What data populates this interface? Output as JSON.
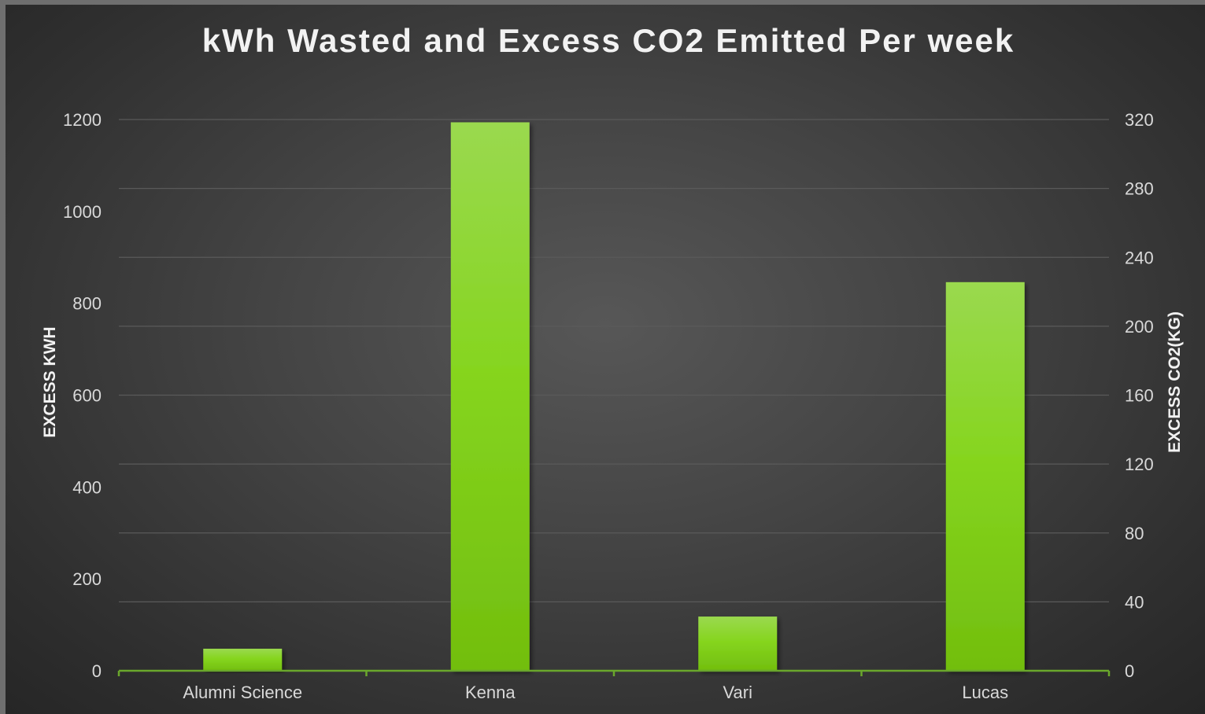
{
  "chart_data": {
    "type": "bar",
    "title": "kWh Wasted and Excess CO2 Emitted Per week",
    "categories": [
      "Alumni Science",
      "Kenna",
      "Vari",
      "Lucas"
    ],
    "series": [
      {
        "values": [
          48,
          1194,
          118,
          846
        ]
      }
    ],
    "ylabel": "EXCESS KWH",
    "ylim": [
      0,
      1200
    ],
    "yticks": [
      "0",
      "200",
      "400",
      "600",
      "800",
      "1000",
      "1200"
    ],
    "ylabel2": "EXCESS CO2(KG)",
    "ylim2": [
      0,
      320
    ],
    "yticks2": [
      "0",
      "40",
      "80",
      "120",
      "160",
      "200",
      "240",
      "280",
      "320"
    ],
    "grid": true,
    "legend": "none",
    "colors": {
      "bar_top": "#9ad94f",
      "bar_mid": "#86d51f",
      "bar_bottom": "#72be0e",
      "axis": "#6aa72c"
    }
  }
}
